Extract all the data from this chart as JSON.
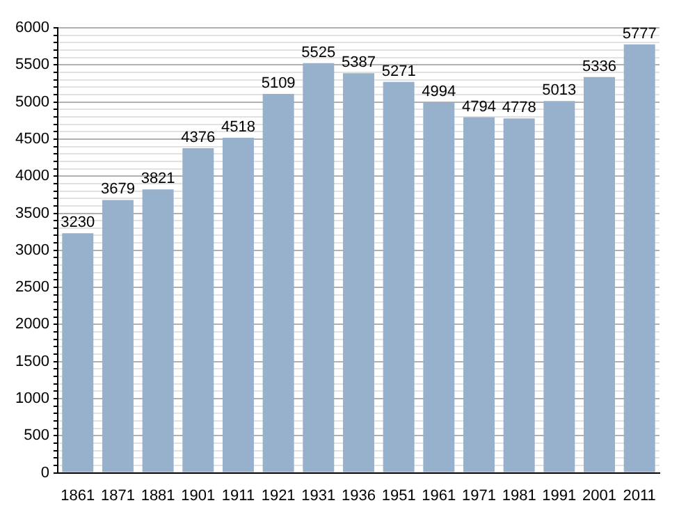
{
  "chart_data": {
    "type": "bar",
    "categories": [
      "1861",
      "1871",
      "1881",
      "1901",
      "1911",
      "1921",
      "1931",
      "1936",
      "1951",
      "1961",
      "1971",
      "1981",
      "1991",
      "2001",
      "2011"
    ],
    "values": [
      3230,
      3679,
      3821,
      4376,
      4518,
      5109,
      5525,
      5387,
      5271,
      4994,
      4794,
      4778,
      5013,
      5336,
      5777
    ],
    "color": "#97b0cb",
    "data_labels": true,
    "grid": "y",
    "ylim": [
      0,
      6000
    ],
    "yticks": [
      0,
      {
        "value": 100,
        "label": null
      },
      {
        "value": 200,
        "label": null
      },
      {
        "value": 300,
        "label": null
      },
      {
        "value": 400,
        "label": null
      },
      500,
      {
        "value": 600,
        "label": null
      },
      {
        "value": 700,
        "label": null
      },
      {
        "value": 800,
        "label": null
      },
      {
        "value": 900,
        "label": null
      },
      1000,
      {
        "value": 1100,
        "label": null
      },
      {
        "value": 1200,
        "label": null
      },
      {
        "value": 1300,
        "label": null
      },
      {
        "value": 1400,
        "label": null
      },
      1500,
      {
        "value": 1600,
        "label": null
      },
      {
        "value": 1700,
        "label": null
      },
      {
        "value": 1800,
        "label": null
      },
      {
        "value": 1900,
        "label": null
      },
      2000,
      {
        "value": 2100,
        "label": null
      },
      {
        "value": 2200,
        "label": null
      },
      {
        "value": 2300,
        "label": null
      },
      {
        "value": 2400,
        "label": null
      },
      2500,
      {
        "value": 2600,
        "label": null
      },
      {
        "value": 2700,
        "label": null
      },
      {
        "value": 2800,
        "label": null
      },
      {
        "value": 2900,
        "label": null
      },
      3000,
      {
        "value": 3100,
        "label": null
      },
      {
        "value": 3200,
        "label": null
      },
      {
        "value": 3300,
        "label": null
      },
      {
        "value": 3400,
        "label": null
      },
      3500,
      {
        "value": 3600,
        "label": null
      },
      {
        "value": 3700,
        "label": null
      },
      {
        "value": 3800,
        "label": null
      },
      {
        "value": 3900,
        "label": null
      },
      4000,
      {
        "value": 4100,
        "label": null
      },
      {
        "value": 4200,
        "label": null
      },
      {
        "value": 4300,
        "label": null
      },
      {
        "value": 4400,
        "label": null
      },
      4500,
      {
        "value": 4600,
        "label": null
      },
      {
        "value": 4700,
        "label": null
      },
      {
        "value": 4800,
        "label": null
      },
      {
        "value": 4900,
        "label": null
      },
      5000,
      {
        "value": 5100,
        "label": null
      },
      {
        "value": 5200,
        "label": null
      },
      {
        "value": 5300,
        "label": null
      },
      {
        "value": 5400,
        "label": null
      },
      5500,
      {
        "value": 5600,
        "label": null
      },
      {
        "value": 5700,
        "label": null
      },
      {
        "value": 5800,
        "label": null
      },
      {
        "value": 5900,
        "label": null
      },
      6000
    ]
  }
}
